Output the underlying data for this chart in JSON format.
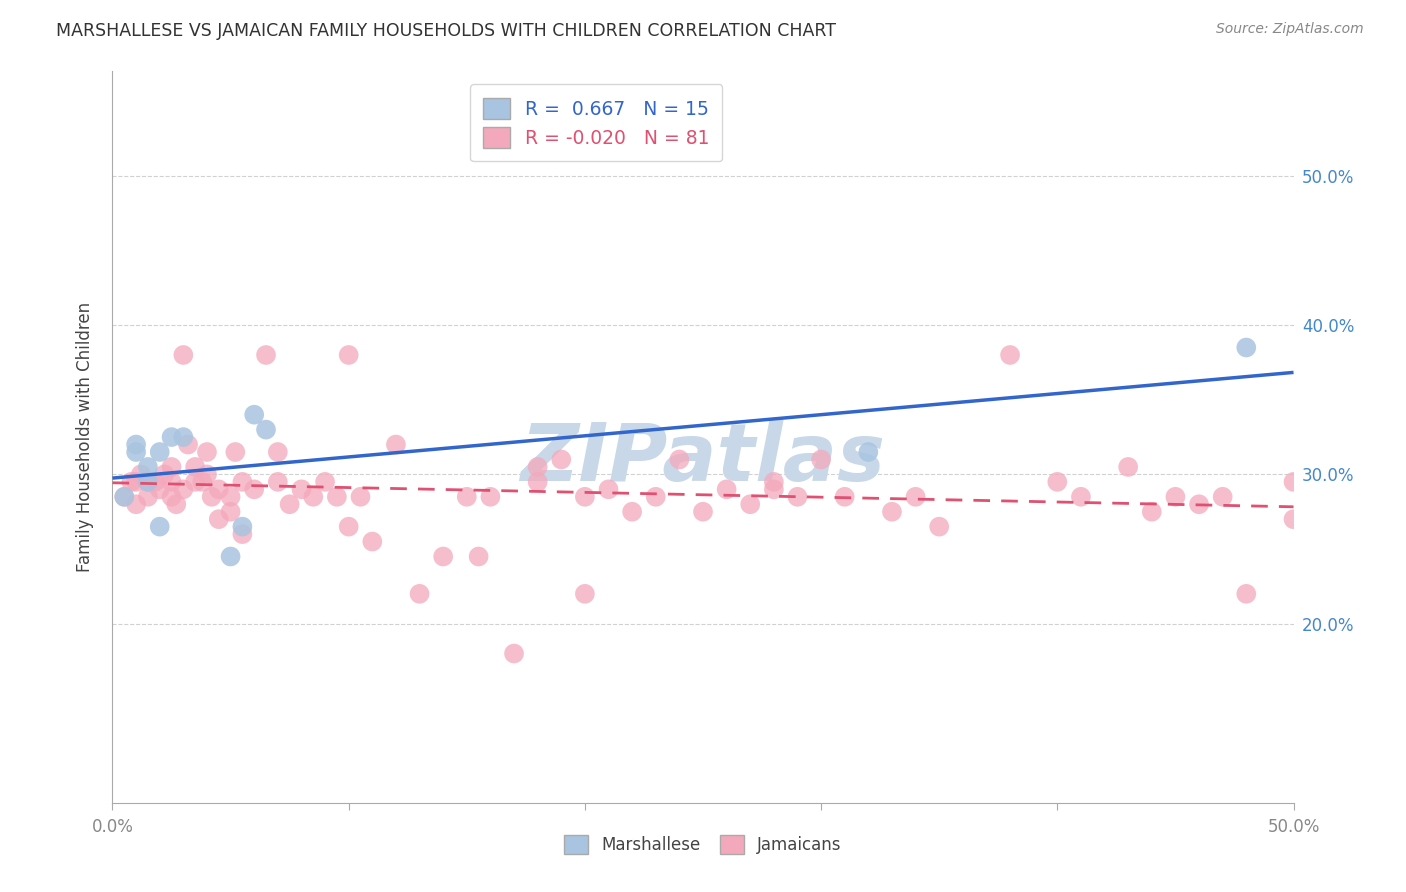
{
  "title": "MARSHALLESE VS JAMAICAN FAMILY HOUSEHOLDS WITH CHILDREN CORRELATION CHART",
  "source": "Source: ZipAtlas.com",
  "ylabel": "Family Households with Children",
  "xlim": [
    0,
    0.5
  ],
  "ylim": [
    0.08,
    0.57
  ],
  "xtick_vals": [
    0.0,
    0.1,
    0.2,
    0.3,
    0.4,
    0.5
  ],
  "xtick_labels_edge": {
    "0.0": "0.0%",
    "0.5": "50.0%"
  },
  "ytick_vals": [
    0.2,
    0.3,
    0.4,
    0.5
  ],
  "ytick_labels": [
    "20.0%",
    "30.0%",
    "40.0%",
    "50.0%"
  ],
  "marshallese_R": 0.667,
  "marshallese_N": 15,
  "jamaican_R": -0.02,
  "jamaican_N": 81,
  "marshallese_color": "#a8c4e0",
  "jamaican_color": "#f4a8bb",
  "marshallese_line_color": "#3366cc",
  "jamaican_line_color": "#e05070",
  "watermark": "ZIPatlas",
  "watermark_color": "#c8d8e8",
  "marshallese_x": [
    0.005,
    0.01,
    0.01,
    0.015,
    0.015,
    0.02,
    0.02,
    0.025,
    0.03,
    0.05,
    0.055,
    0.06,
    0.065,
    0.32,
    0.48
  ],
  "marshallese_y": [
    0.285,
    0.315,
    0.32,
    0.295,
    0.305,
    0.265,
    0.315,
    0.325,
    0.325,
    0.245,
    0.265,
    0.34,
    0.33,
    0.315,
    0.385
  ],
  "jamaican_x": [
    0.005,
    0.008,
    0.01,
    0.01,
    0.012,
    0.015,
    0.015,
    0.018,
    0.02,
    0.022,
    0.025,
    0.025,
    0.025,
    0.027,
    0.03,
    0.03,
    0.032,
    0.035,
    0.035,
    0.038,
    0.04,
    0.04,
    0.042,
    0.045,
    0.045,
    0.05,
    0.05,
    0.052,
    0.055,
    0.055,
    0.06,
    0.065,
    0.07,
    0.07,
    0.075,
    0.08,
    0.085,
    0.09,
    0.095,
    0.1,
    0.1,
    0.105,
    0.11,
    0.12,
    0.13,
    0.14,
    0.15,
    0.155,
    0.16,
    0.17,
    0.18,
    0.18,
    0.19,
    0.2,
    0.2,
    0.21,
    0.22,
    0.23,
    0.24,
    0.25,
    0.26,
    0.27,
    0.28,
    0.28,
    0.29,
    0.3,
    0.31,
    0.33,
    0.34,
    0.35,
    0.38,
    0.4,
    0.41,
    0.43,
    0.44,
    0.45,
    0.46,
    0.47,
    0.48,
    0.5,
    0.5
  ],
  "jamaican_y": [
    0.285,
    0.295,
    0.28,
    0.295,
    0.3,
    0.285,
    0.295,
    0.295,
    0.29,
    0.3,
    0.285,
    0.295,
    0.305,
    0.28,
    0.29,
    0.38,
    0.32,
    0.295,
    0.305,
    0.295,
    0.3,
    0.315,
    0.285,
    0.27,
    0.29,
    0.285,
    0.275,
    0.315,
    0.295,
    0.26,
    0.29,
    0.38,
    0.295,
    0.315,
    0.28,
    0.29,
    0.285,
    0.295,
    0.285,
    0.38,
    0.265,
    0.285,
    0.255,
    0.32,
    0.22,
    0.245,
    0.285,
    0.245,
    0.285,
    0.18,
    0.305,
    0.295,
    0.31,
    0.285,
    0.22,
    0.29,
    0.275,
    0.285,
    0.31,
    0.275,
    0.29,
    0.28,
    0.29,
    0.295,
    0.285,
    0.31,
    0.285,
    0.275,
    0.285,
    0.265,
    0.38,
    0.295,
    0.285,
    0.305,
    0.275,
    0.285,
    0.28,
    0.285,
    0.22,
    0.27,
    0.295
  ],
  "background_color": "#ffffff",
  "grid_color": "#cccccc",
  "tick_color": "#888888",
  "right_axis_color": "#4488cc",
  "title_color": "#333333",
  "source_color": "#888888"
}
